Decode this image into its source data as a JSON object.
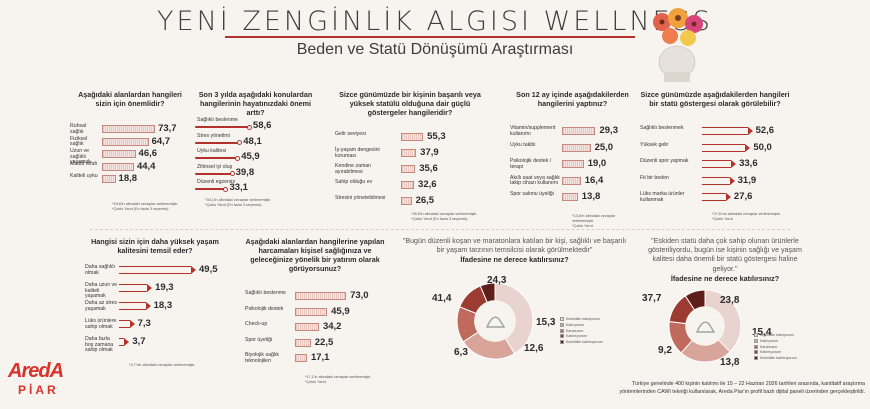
{
  "header": {
    "title": "YENİ ZENGİNLİK ALGISI WELLNESS",
    "subtitle": "Beden ve Statü Dönüşümü Araştırması"
  },
  "chart_data": [
    {
      "type": "bar",
      "id": "c1",
      "title": "Aşağıdaki alanlardan hangileri sizin için önemlidir?",
      "categories": [
        "Ruhsal sağlık",
        "Fiziksel sağlık",
        "Uzun ve sağlıklı yaşamak",
        "Maddi refah",
        "Kaliteli uyku"
      ],
      "values": [
        73.7,
        64.7,
        46.6,
        44.4,
        18.8
      ],
      "value_labels": [
        "73,7",
        "64,7",
        "46,6",
        "44,4",
        "18,8"
      ],
      "notes": [
        "*18,8'in altındaki cevaplar verilmemiştir.",
        "*Çoklu Yanıt (En fazla 3 seçenek)."
      ],
      "ylim": [
        0,
        100
      ]
    },
    {
      "type": "bar",
      "id": "c2",
      "title": "Son 3 yılda aşağıdaki konulardan hangilerinin hayatınızdaki önemi arttı?",
      "categories": [
        "Sağlıklı beslenme",
        "Stres yönetimi",
        "Uyku kalitesi",
        "Zihinsel iyi oluş",
        "Düzenli egzersiz"
      ],
      "values": [
        58.6,
        48.1,
        45.9,
        39.8,
        33.1
      ],
      "value_labels": [
        "58,6",
        "48,1",
        "45,9",
        "39,8",
        "33,1"
      ],
      "notes": [
        "*33,1'in altındaki cevaplar verilmemiştir.",
        "*Çoklu Yanıt (En fazla 3 seçenek)."
      ],
      "ylim": [
        0,
        100
      ]
    },
    {
      "type": "bar",
      "id": "c3",
      "title": "Sizce günümüzde bir kişinin başarılı veya yüksek statülü olduğuna dair güçlü göstergeler hangileridir?",
      "categories": [
        "Gelir seviyesi",
        "İş-yaşam dengesini koruması",
        "Kendine zaman ayırabilmesi",
        "Sahip olduğu ev",
        "Stresini yönetebilmesi"
      ],
      "values": [
        55.3,
        37.9,
        35.6,
        32.6,
        26.5
      ],
      "value_labels": [
        "55,3",
        "37,9",
        "35,6",
        "32,6",
        "26,5"
      ],
      "notes": [
        "*26,5'in altındaki cevaplar verilmemiştir.",
        "*Çoklu Yanıt (En fazla 3 seçenek)."
      ],
      "ylim": [
        0,
        100
      ]
    },
    {
      "type": "bar",
      "id": "c4",
      "title": "Son 12 ay içinde aşağıdakilerden hangilerini yaptınız?",
      "categories": [
        "Vitamin/supplement kullanımı",
        "Uyku takibi",
        "Psikolojik destek / terapi",
        "Akıllı saat veya sağlık takip cihazı kullanımı",
        "Spor salonu üyeliği"
      ],
      "values": [
        29.3,
        25.0,
        19.0,
        16.4,
        13.8
      ],
      "value_labels": [
        "29,3",
        "25,0",
        "19,0",
        "16,4",
        "13,8"
      ],
      "notes": [
        "*13,8'in altındaki cevaplar verilmemiştir.",
        "*Çoklu Yanıt"
      ],
      "ylim": [
        0,
        35
      ]
    },
    {
      "type": "bar",
      "id": "c5",
      "title": "Sizce günümüzde aşağıdakilerden hangileri bir statü göstergesi olarak görülebilir?",
      "categories": [
        "Sağlıklı beslenmek",
        "Yüksek gelir",
        "Düzenli spor yapmak",
        "Fit bir beden",
        "Lüks marka ürünler kullanmak"
      ],
      "values": [
        52.6,
        50.0,
        33.6,
        31.9,
        27.6
      ],
      "value_labels": [
        "52,6",
        "50,0",
        "33,6",
        "31,9",
        "27,6"
      ],
      "notes": [
        "*27,6'nın altındaki cevaplar verilmemiştir.",
        "*Çoklu Yanıt"
      ],
      "ylim": [
        0,
        60
      ]
    },
    {
      "type": "bar",
      "id": "c6",
      "title": "Hangisi sizin için daha yüksek yaşam kalitesini temsil eder?",
      "categories": [
        "Daha sağlıklı olmak",
        "Daha uzun ve kaliteli yaşamak",
        "Daha az stres yaşamak",
        "Lüks ürünlere sahip olmak",
        "Daha fazla boş zamana sahip olmak"
      ],
      "values": [
        49.5,
        19.3,
        18.3,
        7.3,
        3.7
      ],
      "value_labels": [
        "49,5",
        "19,3",
        "18,3",
        "7,3",
        "3,7"
      ],
      "notes": [
        "*3,7'nin altındaki cevaplar verilmemiştir."
      ],
      "ylim": [
        0,
        55
      ]
    },
    {
      "type": "bar",
      "id": "c7",
      "title": "Aşağıdaki alanlardan hangilerine yapılan harcamaları kişisel sağlığınıza ve geleceğinize yönelik bir yatırım olarak görüyorsunuz?",
      "categories": [
        "Sağlıklı beslenme",
        "Psikolojik destek",
        "Check-up",
        "Spor üyeliği",
        "Biyolojik sağlık teknolojileri"
      ],
      "values": [
        73.0,
        45.9,
        34.2,
        22.5,
        17.1
      ],
      "value_labels": [
        "73,0",
        "45,9",
        "34,2",
        "22,5",
        "17,1"
      ],
      "notes": [
        "*17,1'in altındaki cevaplar verilmemiştir.",
        "*Çoklu Yanıt"
      ],
      "ylim": [
        0,
        80
      ]
    },
    {
      "type": "pie",
      "id": "p1",
      "quote": "\"Bugün düzenli koşan ve maratonlara katılan bir kişi, sağlıklı ve başarılı bir yaşam tarzının temsilcisi olarak görülmektedir\"",
      "question": "İfadesine ne derece katılırsınız?",
      "categories": [
        "Kesinlikle katılıyorum",
        "Katılıyorum",
        "Kararsızım",
        "Katılmıyorum",
        "Kesinlikle katılmıyorum"
      ],
      "values": [
        41.4,
        24.3,
        15.3,
        12.6,
        6.3
      ],
      "value_labels": [
        "41,4",
        "24,3",
        "15,3",
        "12,6",
        "6,3"
      ],
      "colors": [
        "#e9d3cf",
        "#d9a59b",
        "#c06a5e",
        "#9c3b32",
        "#5e1f1a"
      ]
    },
    {
      "type": "pie",
      "id": "p2",
      "quote": "\"Eskiden statü daha çok sahip olunan ürünlerle gösteriliyordu, bugün ise kişinin sağlığı ve yaşam kalitesi daha önemli bir statü göstergesi haline geliyor.\"",
      "question": "İfadesine ne derece katılırsınız?",
      "categories": [
        "Kesinlikle katılıyorum",
        "Katılıyorum",
        "Kararsızım",
        "Katılmıyorum",
        "Kesinlikle katılmıyorum"
      ],
      "values": [
        37.7,
        23.8,
        15.4,
        13.8,
        9.2
      ],
      "value_labels": [
        "37,7",
        "23,8",
        "15,4",
        "13,8",
        "9,2"
      ],
      "colors": [
        "#e9d3cf",
        "#d9a59b",
        "#c06a5e",
        "#9c3b32",
        "#5e1f1a"
      ]
    }
  ],
  "footer": {
    "text1": "Türkiye genelinde 400 kişinin katılımı ile 15 – 22 Haziran 2026 tarihleri arasında, kantitatif araştırma",
    "text2": "yöntemlerinden CAWI tekniği kullanılarak, Areda Piar'ın profil bazlı dijital paneli üzerinden gerçekleştirildi."
  },
  "logo": {
    "top": "AredA",
    "bottom": "PİAR"
  }
}
